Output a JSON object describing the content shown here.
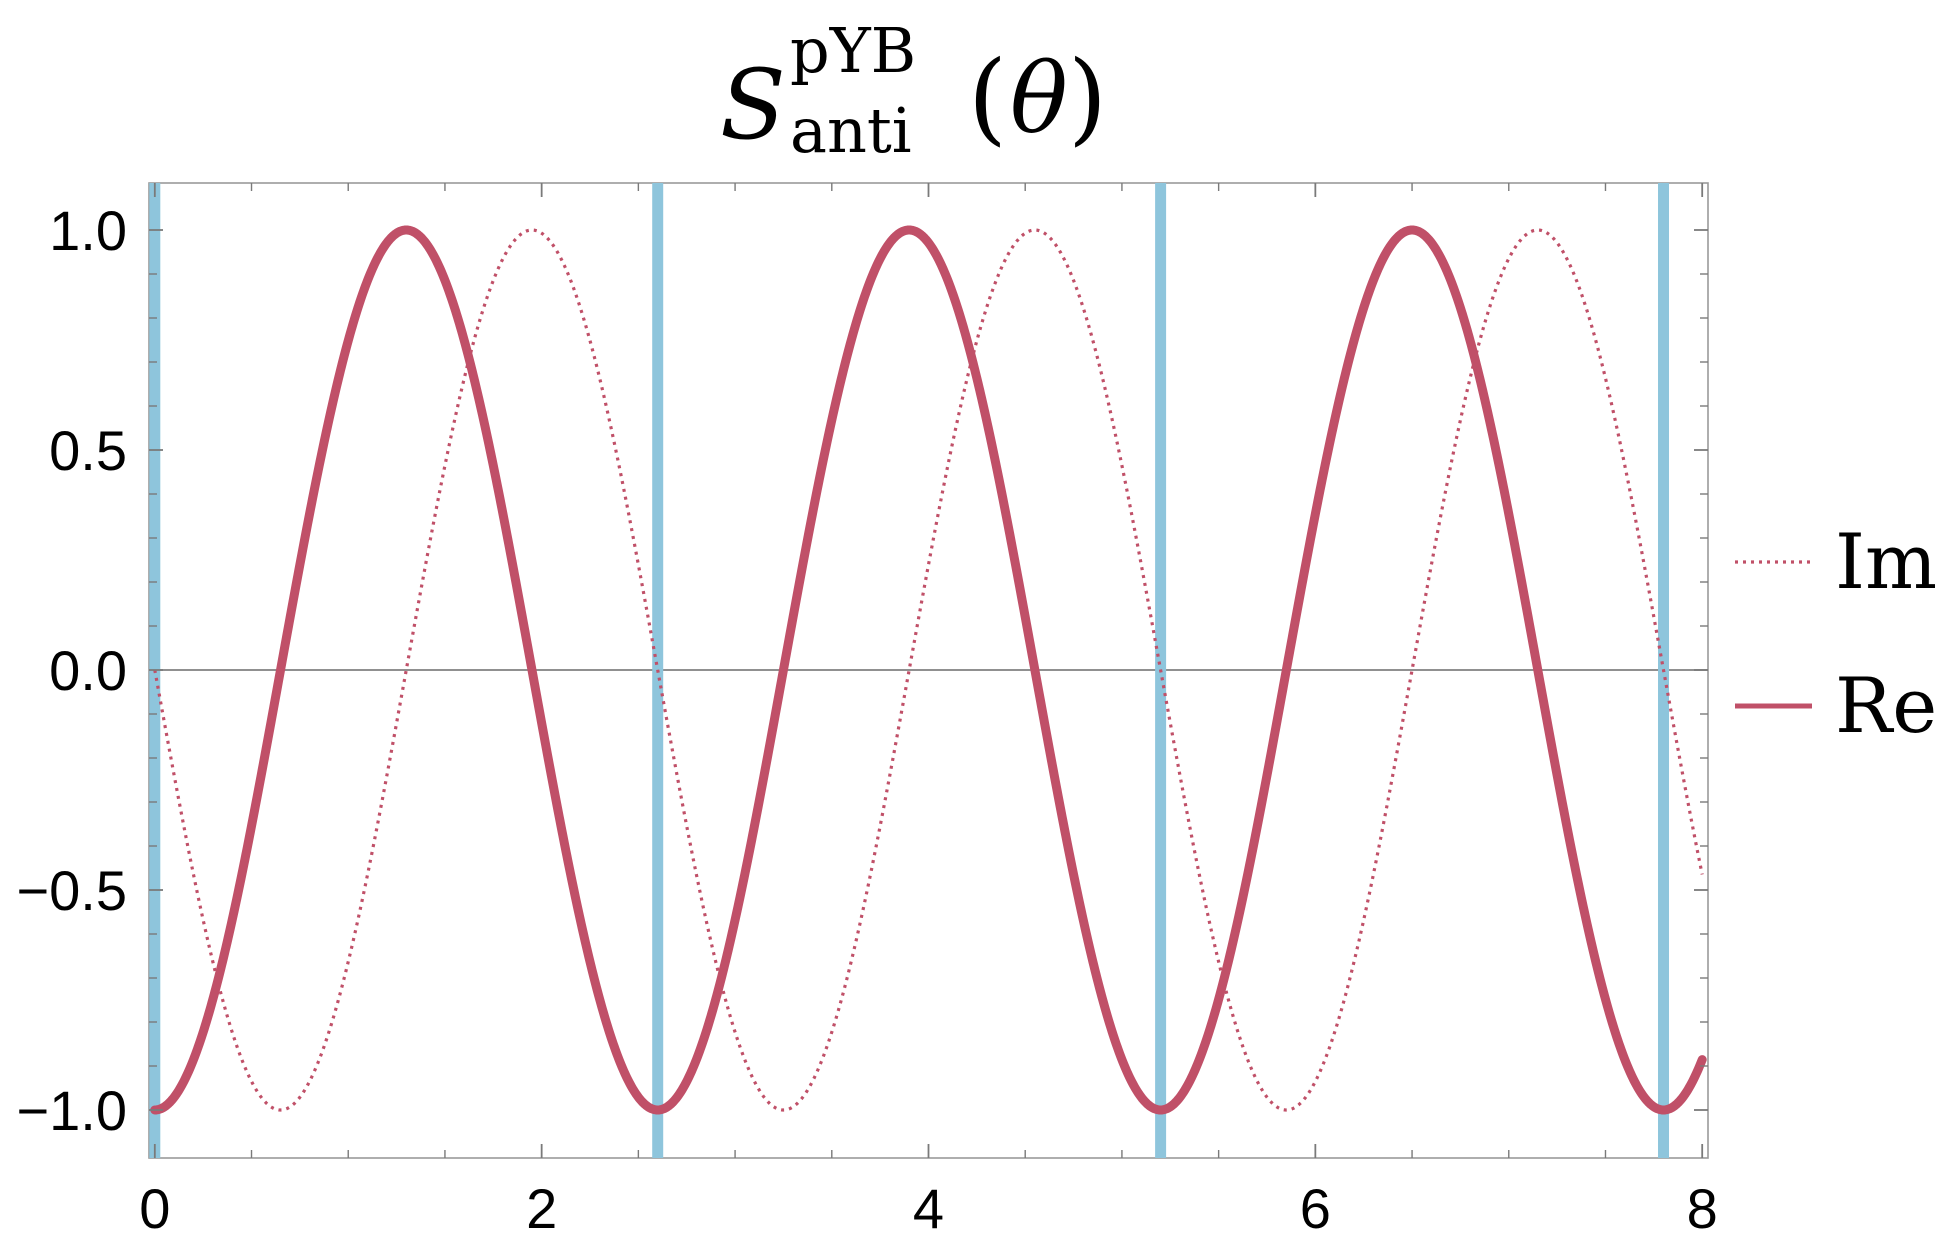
{
  "chart_data": {
    "type": "line",
    "title": {
      "symbol": "S",
      "superscript": "pYB",
      "subscript": "anti",
      "argument": "θ"
    },
    "xlabel": "",
    "ylabel": "",
    "xlim": [
      0,
      8
    ],
    "ylim": [
      -1.0,
      1.0
    ],
    "xticks": [
      0,
      2,
      4,
      6,
      8
    ],
    "yticks": [
      -1.0,
      -0.5,
      0.0,
      0.5,
      1.0
    ],
    "xtick_labels": [
      "0",
      "2",
      "4",
      "6",
      "8"
    ],
    "ytick_labels": [
      "−1.0",
      "−0.5",
      "0.0",
      "0.5",
      "1.0"
    ],
    "grid": false,
    "legend_position": "right",
    "period": 2.6,
    "series": [
      {
        "name": "Im",
        "style": "dotted",
        "color": "#c05068",
        "function": "-sin(2*pi*x/2.6)",
        "x": [
          0,
          0.65,
          1.3,
          1.95,
          2.6,
          3.25,
          3.9,
          4.55,
          5.2,
          5.85,
          6.5,
          7.15,
          7.8,
          8.0
        ],
        "y": [
          0,
          -1.0,
          0,
          1.0,
          0,
          -1.0,
          0,
          1.0,
          0,
          -1.0,
          0,
          1.0,
          0,
          -0.46
        ]
      },
      {
        "name": "Re",
        "style": "solid",
        "color": "#c05068",
        "function": "-cos(2*pi*x/2.6)",
        "x": [
          0,
          0.65,
          1.3,
          1.95,
          2.6,
          3.25,
          3.9,
          4.55,
          5.2,
          5.85,
          6.5,
          7.15,
          7.8,
          8.0
        ],
        "y": [
          -1.0,
          0,
          1.0,
          0,
          -1.0,
          0,
          1.0,
          0,
          -1.0,
          0,
          1.0,
          0,
          -1.0,
          -0.89
        ]
      }
    ],
    "vertical_lines": {
      "color": "#8ec5dc",
      "x": [
        0,
        2.6,
        5.2,
        7.8
      ]
    },
    "zero_line_color": "#808080"
  }
}
